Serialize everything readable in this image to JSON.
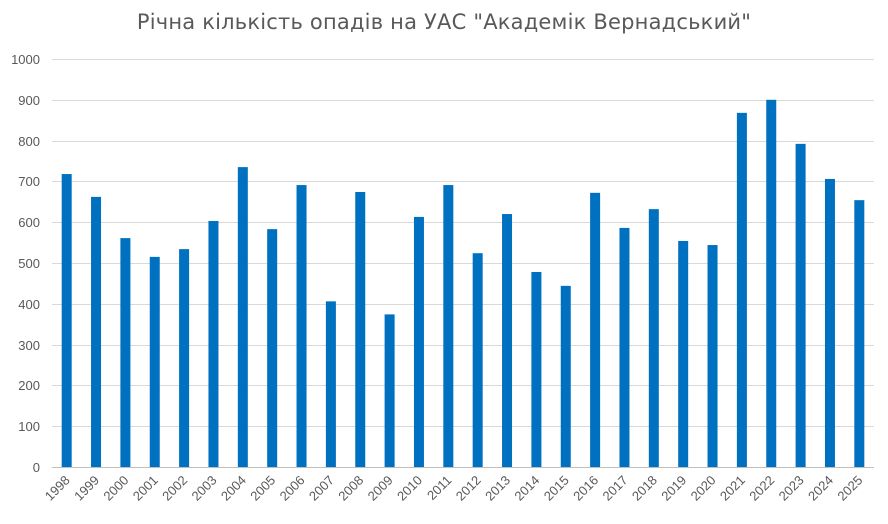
{
  "chart_data": {
    "type": "bar",
    "title": "Річна кількість опадів на УАС \"Академік Вернадський\"",
    "xlabel": "",
    "ylabel": "",
    "ylim": [
      0,
      1000
    ],
    "yticks": [
      0,
      100,
      200,
      300,
      400,
      500,
      600,
      700,
      800,
      900,
      1000
    ],
    "grid": true,
    "legend": "none",
    "bar_color": "#0070C0",
    "categories": [
      "1998",
      "1999",
      "2000",
      "2001",
      "2002",
      "2003",
      "2004",
      "2005",
      "2006",
      "2007",
      "2008",
      "2009",
      "2010",
      "2011",
      "2012",
      "2013",
      "2014",
      "2015",
      "2016",
      "2017",
      "2018",
      "2019",
      "2020",
      "2021",
      "2022",
      "2023",
      "2024",
      "2025"
    ],
    "values": [
      718,
      662,
      561,
      515,
      534,
      603,
      735,
      583,
      691,
      406,
      674,
      374,
      613,
      691,
      524,
      620,
      478,
      444,
      672,
      586,
      632,
      554,
      544,
      868,
      900,
      792,
      706,
      654
    ]
  }
}
